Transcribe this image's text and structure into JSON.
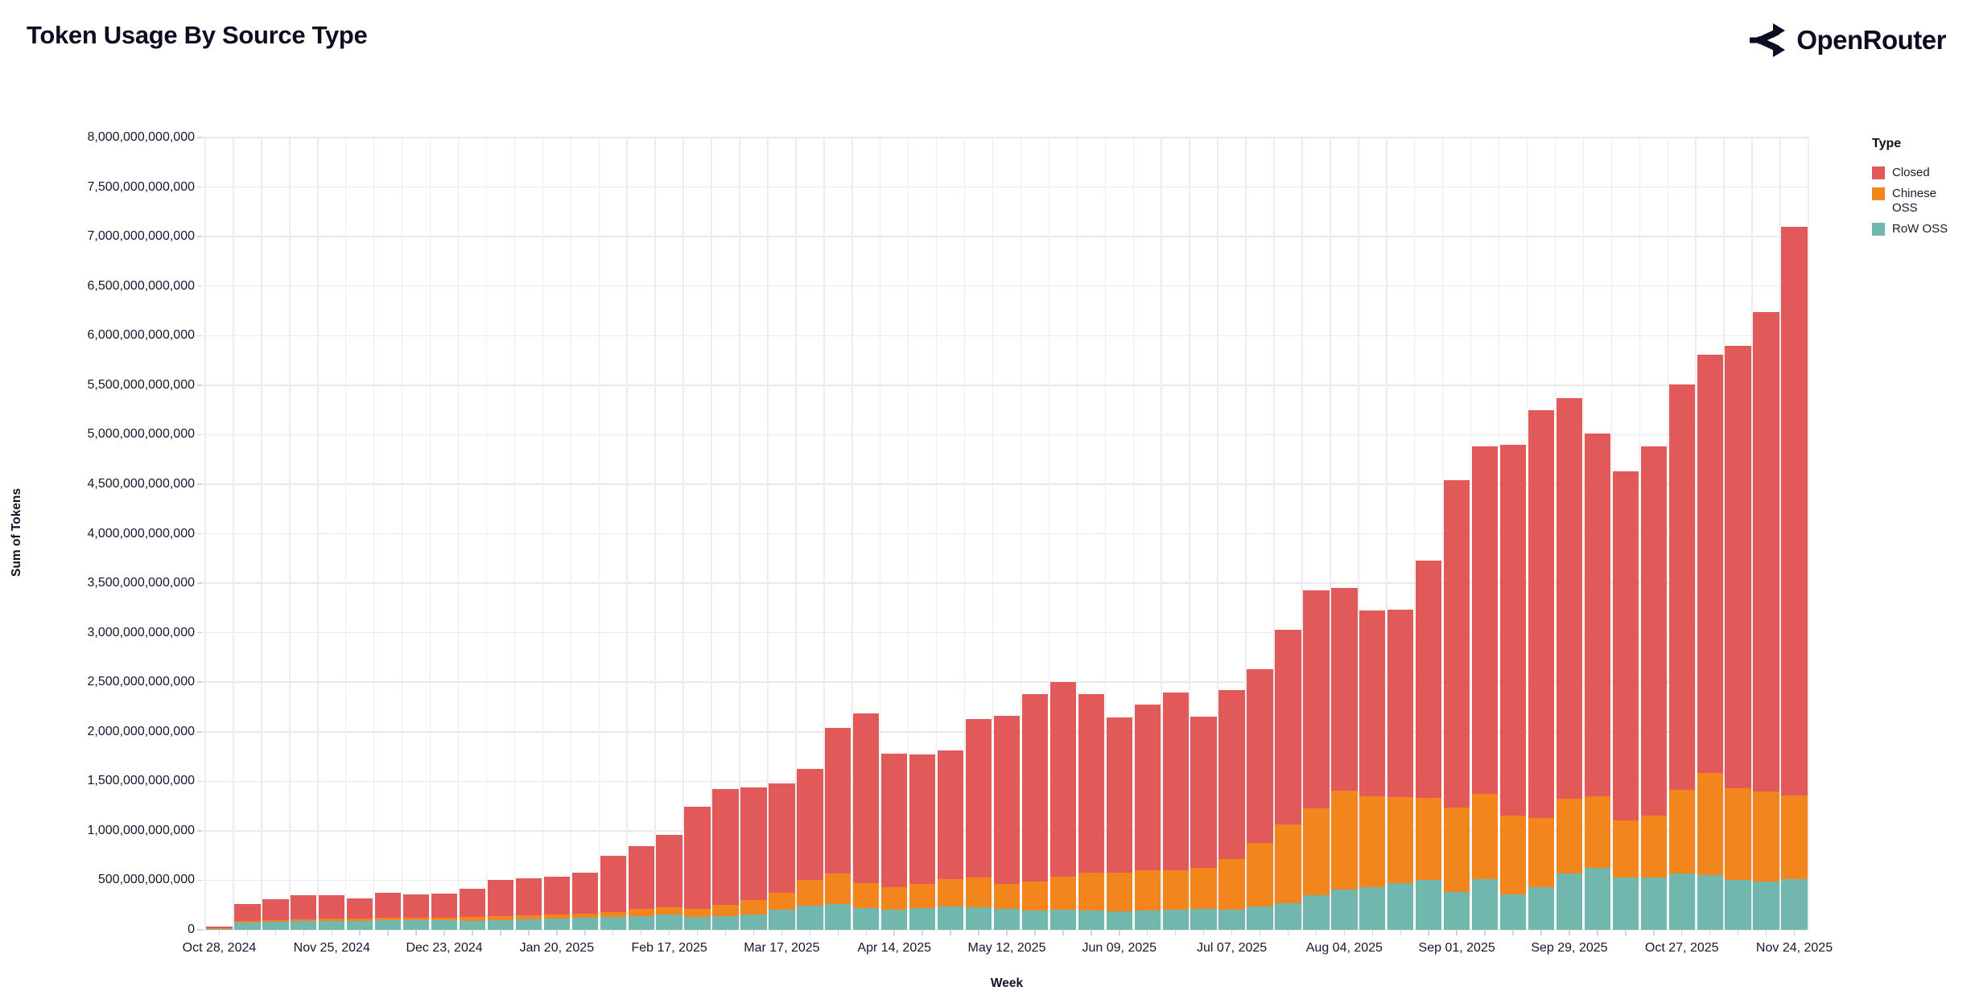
{
  "header": {
    "title": "Token Usage By Source Type",
    "brand": "OpenRouter"
  },
  "legend": {
    "title": "Type",
    "entries": [
      {
        "label": "Closed",
        "color": "#e25959"
      },
      {
        "label": "Chinese OSS",
        "color": "#f3851d"
      },
      {
        "label": "RoW OSS",
        "color": "#72b7ae"
      }
    ]
  },
  "chart_data": {
    "type": "bar",
    "stacked": true,
    "title": "Token Usage By Source Type",
    "xlabel": "Week",
    "ylabel": "Sum of Tokens",
    "unit": "tokens",
    "values_unit_multiplier": 1000000000,
    "ylim": [
      0,
      8000000000000
    ],
    "y_tick_step": 500000000000,
    "x_tick_label_every": 4,
    "grid": true,
    "legend_position": "right",
    "categories": [
      "Oct 28, 2024",
      "Nov 04, 2024",
      "Nov 11, 2024",
      "Nov 18, 2024",
      "Nov 25, 2024",
      "Dec 02, 2024",
      "Dec 09, 2024",
      "Dec 16, 2024",
      "Dec 23, 2024",
      "Dec 30, 2024",
      "Jan 06, 2025",
      "Jan 13, 2025",
      "Jan 20, 2025",
      "Jan 27, 2025",
      "Feb 03, 2025",
      "Feb 10, 2025",
      "Feb 17, 2025",
      "Feb 24, 2025",
      "Mar 03, 2025",
      "Mar 10, 2025",
      "Mar 17, 2025",
      "Mar 24, 2025",
      "Mar 31, 2025",
      "Apr 07, 2025",
      "Apr 14, 2025",
      "Apr 21, 2025",
      "Apr 28, 2025",
      "May 05, 2025",
      "May 12, 2025",
      "May 19, 2025",
      "May 26, 2025",
      "Jun 02, 2025",
      "Jun 09, 2025",
      "Jun 16, 2025",
      "Jun 23, 2025",
      "Jun 30, 2025",
      "Jul 07, 2025",
      "Jul 14, 2025",
      "Jul 21, 2025",
      "Jul 28, 2025",
      "Aug 04, 2025",
      "Aug 11, 2025",
      "Aug 18, 2025",
      "Aug 25, 2025",
      "Sep 01, 2025",
      "Sep 08, 2025",
      "Sep 15, 2025",
      "Sep 22, 2025",
      "Sep 29, 2025",
      "Oct 06, 2025",
      "Oct 13, 2025",
      "Oct 20, 2025",
      "Oct 27, 2025",
      "Nov 03, 2025",
      "Nov 10, 2025",
      "Nov 17, 2025",
      "Nov 24, 2025"
    ],
    "series": [
      {
        "name": "RoW OSS",
        "color": "#72b7ae",
        "stack_position": "bottom",
        "values_billions": [
          8,
          76,
          81,
          87,
          87,
          92,
          95,
          100,
          95,
          89,
          97,
          108,
          111,
          122,
          130,
          141,
          152,
          130,
          137,
          157,
          206,
          241,
          256,
          221,
          205,
          220,
          235,
          228,
          215,
          198,
          200,
          195,
          190,
          192,
          200,
          208,
          205,
          233,
          270,
          346,
          409,
          430,
          470,
          500,
          385,
          515,
          355,
          430,
          572,
          627,
          525,
          530,
          569,
          550,
          501,
          490,
          514
        ]
      },
      {
        "name": "Chinese OSS",
        "color": "#f3851d",
        "stack_position": "middle",
        "values_billions": [
          6,
          11,
          16,
          21,
          27,
          22,
          24,
          25,
          30,
          41,
          41,
          38,
          41,
          41,
          49,
          70,
          73,
          80,
          118,
          143,
          164,
          259,
          312,
          249,
          225,
          245,
          275,
          302,
          250,
          292,
          335,
          382,
          390,
          408,
          405,
          417,
          513,
          647,
          795,
          884,
          999,
          915,
          873,
          830,
          852,
          861,
          799,
          701,
          748,
          718,
          580,
          625,
          844,
          1035,
          929,
          910,
          841
        ]
      },
      {
        "name": "Closed",
        "color": "#e25959",
        "stack_position": "top",
        "values_billions": [
          21,
          173,
          209,
          242,
          233,
          205,
          255,
          235,
          240,
          287,
          366,
          377,
          384,
          416,
          566,
          631,
          736,
          1030,
          1169,
          1135,
          1105,
          1124,
          1470,
          1717,
          1351,
          1303,
          1298,
          1598,
          1695,
          1892,
          1964,
          1803,
          1565,
          1673,
          1795,
          1526,
          1700,
          1750,
          1965,
          2195,
          2042,
          1882,
          1893,
          2400,
          3303,
          3504,
          3746,
          4114,
          4045,
          3665,
          3525,
          3725,
          4092,
          4225,
          4465,
          4835,
          5745
        ]
      }
    ]
  }
}
